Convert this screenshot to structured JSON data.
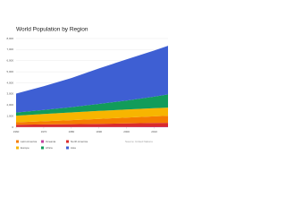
{
  "chart_data": {
    "type": "stacked_area",
    "title": "World Population by Region",
    "x": [
      1960,
      1970,
      1980,
      1990,
      2000,
      2010,
      2015
    ],
    "xlim": [
      1960,
      2015
    ],
    "xticks": [
      1960,
      1970,
      1980,
      1990,
      2000,
      2010
    ],
    "ylim": [
      0,
      8000
    ],
    "yticks": [
      0,
      {
        "value": 1000,
        "label": "1,000"
      },
      {
        "value": 2000,
        "label": "2,000"
      },
      {
        "value": 3000,
        "label": "3,000"
      },
      {
        "value": 4000,
        "label": "4,000"
      },
      {
        "value": 5000,
        "label": "5,000"
      },
      {
        "value": 6000,
        "label": "6,000"
      },
      {
        "value": 7000,
        "label": "7,000"
      },
      {
        "value": 8000,
        "label": "8,000"
      }
    ],
    "series": [
      {
        "name": "Oceania",
        "color": "#c2409e",
        "values": [
          16,
          19,
          23,
          27,
          31,
          37,
          39
        ]
      },
      {
        "name": "North America",
        "color": "#d92b2b",
        "values": [
          204,
          231,
          254,
          280,
          313,
          343,
          358
        ]
      },
      {
        "name": "Latin America",
        "color": "#f57c00",
        "values": [
          220,
          286,
          362,
          443,
          522,
          598,
          634
        ]
      },
      {
        "name": "Europe",
        "color": "#f7b500",
        "values": [
          605,
          657,
          694,
          721,
          726,
          736,
          740
        ]
      },
      {
        "name": "Africa",
        "color": "#129c5a",
        "values": [
          283,
          363,
          476,
          630,
          811,
          1039,
          1186
        ]
      },
      {
        "name": "Asia",
        "color": "#3e5fd3",
        "values": [
          1700,
          2140,
          2630,
          3200,
          3720,
          4170,
          4390
        ]
      }
    ],
    "legend_order": [
      2,
      3,
      0,
      4,
      1,
      5
    ],
    "note": "Source: United Nations"
  }
}
